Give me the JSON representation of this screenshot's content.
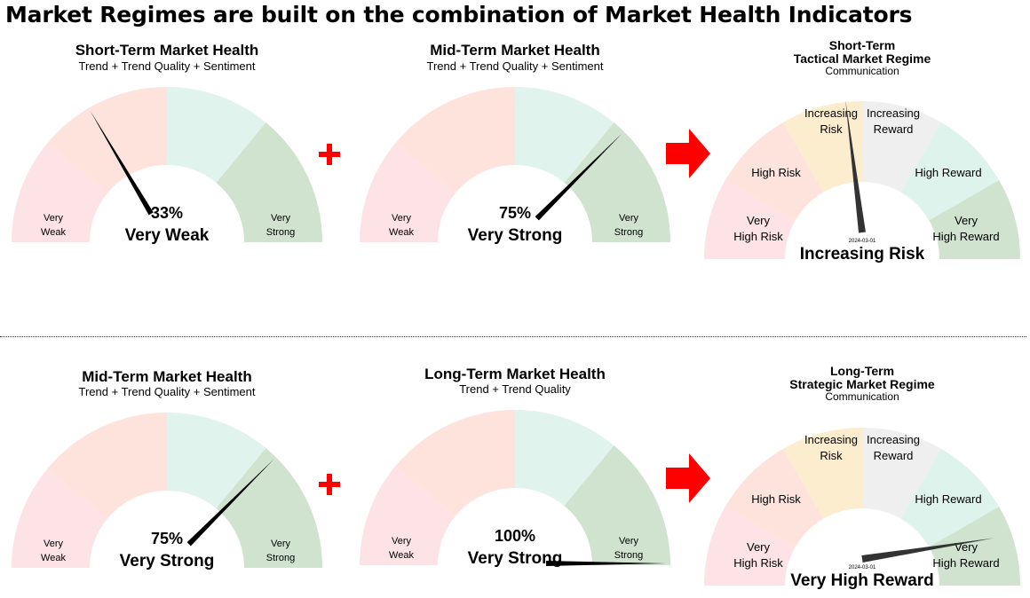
{
  "headline": "Market Regimes are built on the combination of Market Health Indicators",
  "colors": {
    "red1": "#fde2e6",
    "red2": "#fde3dc",
    "green1": "#e0f3ec",
    "green2": "#cfe3cf",
    "orange": "#fdedcf",
    "grey": "#efefef",
    "mint": "#ddf3ec",
    "accent_red": "#ff0000",
    "needle": "#000000",
    "needle_dark": "#333333"
  },
  "health_gauges": [
    {
      "title": "Short-Term Market Health",
      "subtitle": "Trend + Trend Quality + Sentiment",
      "value_label": "33%",
      "status": "Very Weak",
      "value": 0.33,
      "zone_left": [
        "Very",
        "Weak"
      ],
      "zone_right": [
        "Very",
        "Strong"
      ]
    },
    {
      "title": "Mid-Term Market Health",
      "subtitle": "Trend + Trend Quality + Sentiment",
      "value_label": "75%",
      "status": "Very Strong",
      "value": 0.75,
      "zone_left": [
        "Very",
        "Weak"
      ],
      "zone_right": [
        "Very",
        "Strong"
      ]
    },
    {
      "title": "Mid-Term Market Health",
      "subtitle": "Trend + Trend Quality + Sentiment",
      "value_label": "75%",
      "status": "Very Strong",
      "value": 0.75,
      "zone_left": [
        "Very",
        "Weak"
      ],
      "zone_right": [
        "Very",
        "Strong"
      ]
    },
    {
      "title": "Long-Term Market Health",
      "subtitle": "Trend + Trend Quality",
      "value_label": "100%",
      "status": "Very Strong",
      "value": 1.0,
      "zone_left": [
        "Very",
        "Weak"
      ],
      "zone_right": [
        "Very",
        "Strong"
      ]
    }
  ],
  "regime_gauges": [
    {
      "title_line1": "Short-Term",
      "title_line2": "Tactical Market Regime",
      "subtitle": "Communication",
      "status": "Increasing Risk",
      "date": "2024-03-01",
      "level": 0.46,
      "zones": [
        [
          "Very",
          "High Risk"
        ],
        [
          "High Risk"
        ],
        [
          "Increasing",
          "Risk"
        ],
        [
          "Increasing",
          "Reward"
        ],
        [
          "High Reward"
        ],
        [
          "Very",
          "High Reward"
        ]
      ]
    },
    {
      "title_line1": "Long-Term",
      "title_line2": "Strategic Market Regime",
      "subtitle": "Communication",
      "status": "Very High Reward",
      "date": "2024-03-01",
      "level": 0.95,
      "zones": [
        [
          "Very",
          "High Risk"
        ],
        [
          "High Risk"
        ],
        [
          "Increasing",
          "Risk"
        ],
        [
          "Increasing",
          "Reward"
        ],
        [
          "High Reward"
        ],
        [
          "Very",
          "High Reward"
        ]
      ]
    }
  ]
}
